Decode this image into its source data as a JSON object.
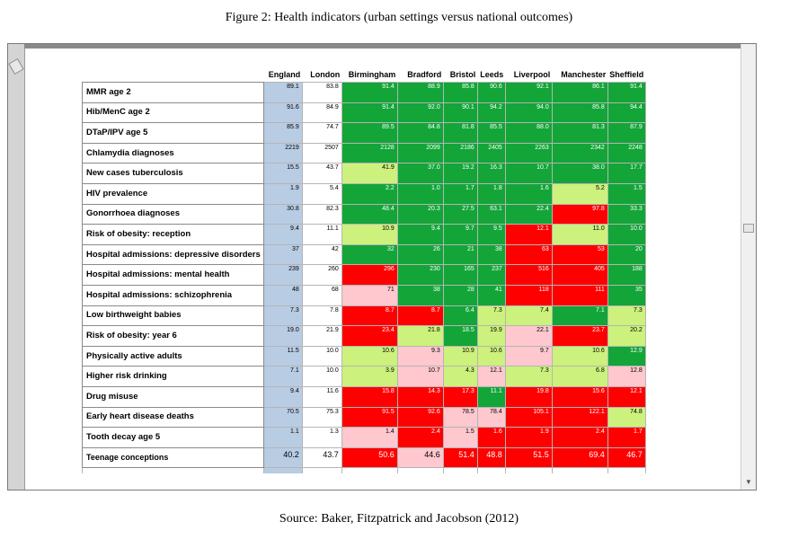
{
  "figure_title": "Figure 2: Health indicators (urban settings versus national outcomes)",
  "source": "Source: Baker, Fitzpatrick and Jacobson (2012)",
  "columns": [
    "England",
    "London",
    "Birmingham",
    "Bradford",
    "Bristol",
    "Leeds",
    "Liverpool",
    "Manchester",
    "Sheffield"
  ],
  "legend_colors": {
    "england": "#b8cce4",
    "better": "#13a538",
    "similar": "#ccf17c",
    "worse": "#ff0000",
    "slightly_worse": "#ffc7ce"
  },
  "rows": [
    {
      "label": "MMR age 2",
      "england": "89.1",
      "london": "83.8",
      "cities": [
        {
          "v": "91.4",
          "c": "g"
        },
        {
          "v": "88.9",
          "c": "g"
        },
        {
          "v": "85.8",
          "c": "g"
        },
        {
          "v": "90.6",
          "c": "g"
        },
        {
          "v": "92.1",
          "c": "g"
        },
        {
          "v": "86.1",
          "c": "g"
        },
        {
          "v": "91.4",
          "c": "g"
        }
      ]
    },
    {
      "label": "Hib/MenC age 2",
      "england": "91.6",
      "london": "84.9",
      "cities": [
        {
          "v": "91.4",
          "c": "g"
        },
        {
          "v": "92.0",
          "c": "g"
        },
        {
          "v": "90.1",
          "c": "g"
        },
        {
          "v": "94.2",
          "c": "g"
        },
        {
          "v": "94.0",
          "c": "g"
        },
        {
          "v": "85.8",
          "c": "g"
        },
        {
          "v": "94.4",
          "c": "g"
        }
      ]
    },
    {
      "label": "DTaP/IPV age 5",
      "england": "85.9",
      "london": "74.7",
      "cities": [
        {
          "v": "89.5",
          "c": "g"
        },
        {
          "v": "84.8",
          "c": "g"
        },
        {
          "v": "81.8",
          "c": "g"
        },
        {
          "v": "85.5",
          "c": "g"
        },
        {
          "v": "88.0",
          "c": "g"
        },
        {
          "v": "81.3",
          "c": "g"
        },
        {
          "v": "87.9",
          "c": "g"
        }
      ]
    },
    {
      "label": "Chlamydia diagnoses",
      "england": "2219",
      "london": "2507",
      "cities": [
        {
          "v": "2128",
          "c": "g"
        },
        {
          "v": "2099",
          "c": "g"
        },
        {
          "v": "2186",
          "c": "g"
        },
        {
          "v": "2405",
          "c": "g"
        },
        {
          "v": "2263",
          "c": "g"
        },
        {
          "v": "2342",
          "c": "g"
        },
        {
          "v": "2248",
          "c": "g"
        }
      ]
    },
    {
      "label": "New cases tuberculosis",
      "england": "15.5",
      "london": "43.7",
      "cities": [
        {
          "v": "41.9",
          "c": "y"
        },
        {
          "v": "37.0",
          "c": "g"
        },
        {
          "v": "19.2",
          "c": "g"
        },
        {
          "v": "16.3",
          "c": "g"
        },
        {
          "v": "10.7",
          "c": "g"
        },
        {
          "v": "38.0",
          "c": "g"
        },
        {
          "v": "17.7",
          "c": "g"
        }
      ]
    },
    {
      "label": "HIV prevalence",
      "england": "1.9",
      "london": "5.4",
      "cities": [
        {
          "v": "2.2",
          "c": "g"
        },
        {
          "v": "1.0",
          "c": "g"
        },
        {
          "v": "1.7",
          "c": "g"
        },
        {
          "v": "1.8",
          "c": "g"
        },
        {
          "v": "1.6",
          "c": "g"
        },
        {
          "v": "5.2",
          "c": "y"
        },
        {
          "v": "1.5",
          "c": "g"
        }
      ]
    },
    {
      "label": "Gonorrhoea diagnoses",
      "england": "30.8",
      "london": "82.3",
      "cities": [
        {
          "v": "48.4",
          "c": "g"
        },
        {
          "v": "20.3",
          "c": "g"
        },
        {
          "v": "27.5",
          "c": "g"
        },
        {
          "v": "63.1",
          "c": "g"
        },
        {
          "v": "22.4",
          "c": "g"
        },
        {
          "v": "97.8",
          "c": "r"
        },
        {
          "v": "33.3",
          "c": "g"
        }
      ]
    },
    {
      "label": "Risk of obesity: reception",
      "england": "9.4",
      "london": "11.1",
      "cities": [
        {
          "v": "10.9",
          "c": "y"
        },
        {
          "v": "9.4",
          "c": "g"
        },
        {
          "v": "9.7",
          "c": "g"
        },
        {
          "v": "9.5",
          "c": "g"
        },
        {
          "v": "12.1",
          "c": "r"
        },
        {
          "v": "11.0",
          "c": "y"
        },
        {
          "v": "10.0",
          "c": "g"
        }
      ]
    },
    {
      "label": "Hospital admissions: depressive disorders",
      "england": "37",
      "london": "42",
      "cities": [
        {
          "v": "32",
          "c": "g"
        },
        {
          "v": "26",
          "c": "g"
        },
        {
          "v": "21",
          "c": "g"
        },
        {
          "v": "38",
          "c": "g"
        },
        {
          "v": "63",
          "c": "r"
        },
        {
          "v": "53",
          "c": "r"
        },
        {
          "v": "20",
          "c": "g"
        }
      ]
    },
    {
      "label": "Hospital admissions: mental health",
      "england": "239",
      "london": "260",
      "cities": [
        {
          "v": "296",
          "c": "r"
        },
        {
          "v": "230",
          "c": "g"
        },
        {
          "v": "165",
          "c": "g"
        },
        {
          "v": "237",
          "c": "g"
        },
        {
          "v": "516",
          "c": "r"
        },
        {
          "v": "405",
          "c": "r"
        },
        {
          "v": "188",
          "c": "g"
        }
      ]
    },
    {
      "label": "Hospital admissions: schizophrenia",
      "england": "48",
      "london": "68",
      "cities": [
        {
          "v": "71",
          "c": "p"
        },
        {
          "v": "38",
          "c": "g"
        },
        {
          "v": "28",
          "c": "g"
        },
        {
          "v": "41",
          "c": "g"
        },
        {
          "v": "118",
          "c": "r"
        },
        {
          "v": "111",
          "c": "r"
        },
        {
          "v": "35",
          "c": "g"
        }
      ]
    },
    {
      "label": "Low birthweight babies",
      "england": "7.3",
      "london": "7.8",
      "cities": [
        {
          "v": "8.7",
          "c": "r"
        },
        {
          "v": "8.7",
          "c": "r"
        },
        {
          "v": "6.4",
          "c": "g"
        },
        {
          "v": "7.3",
          "c": "y"
        },
        {
          "v": "7.4",
          "c": "y"
        },
        {
          "v": "7.1",
          "c": "g"
        },
        {
          "v": "7.3",
          "c": "y"
        }
      ]
    },
    {
      "label": "Risk of obesity:  year 6",
      "england": "19.0",
      "london": "21.9",
      "cities": [
        {
          "v": "23.4",
          "c": "r"
        },
        {
          "v": "21.8",
          "c": "y"
        },
        {
          "v": "18.5",
          "c": "g"
        },
        {
          "v": "19.9",
          "c": "y"
        },
        {
          "v": "22.1",
          "c": "p"
        },
        {
          "v": "23.7",
          "c": "r"
        },
        {
          "v": "20.2",
          "c": "y"
        }
      ]
    },
    {
      "label": "Physically active adults",
      "england": "11.5",
      "london": "10.0",
      "cities": [
        {
          "v": "10.6",
          "c": "y"
        },
        {
          "v": "9.3",
          "c": "p"
        },
        {
          "v": "10.9",
          "c": "y"
        },
        {
          "v": "10.6",
          "c": "y"
        },
        {
          "v": "9.7",
          "c": "p"
        },
        {
          "v": "10.6",
          "c": "y"
        },
        {
          "v": "12.9",
          "c": "g"
        }
      ]
    },
    {
      "label": "Higher risk drinking",
      "england": "7.1",
      "london": "10.0",
      "cities": [
        {
          "v": "3.9",
          "c": "y"
        },
        {
          "v": "10.7",
          "c": "p"
        },
        {
          "v": "4.3",
          "c": "y"
        },
        {
          "v": "12.1",
          "c": "p"
        },
        {
          "v": "7.3",
          "c": "y"
        },
        {
          "v": "6.8",
          "c": "y"
        },
        {
          "v": "12.8",
          "c": "p"
        }
      ]
    },
    {
      "label": "Drug misuse",
      "england": "9.4",
      "london": "11.6",
      "cities": [
        {
          "v": "15.8",
          "c": "r"
        },
        {
          "v": "14.3",
          "c": "r"
        },
        {
          "v": "17.3",
          "c": "r"
        },
        {
          "v": "11.1",
          "c": "g"
        },
        {
          "v": "19.8",
          "c": "r"
        },
        {
          "v": "15.6",
          "c": "r"
        },
        {
          "v": "12.1",
          "c": "r"
        }
      ]
    },
    {
      "label": "Early heart disease deaths",
      "england": "70.5",
      "london": "75.3",
      "cities": [
        {
          "v": "91.5",
          "c": "r"
        },
        {
          "v": "92.6",
          "c": "r"
        },
        {
          "v": "78.5",
          "c": "p"
        },
        {
          "v": "78.4",
          "c": "p"
        },
        {
          "v": "105.1",
          "c": "r"
        },
        {
          "v": "122.1",
          "c": "r"
        },
        {
          "v": "74.8",
          "c": "y"
        }
      ]
    },
    {
      "label": "Tooth decay age 5",
      "england": "1.1",
      "london": "1.3",
      "cities": [
        {
          "v": "1.4",
          "c": "p"
        },
        {
          "v": "2.4",
          "c": "r"
        },
        {
          "v": "1.5",
          "c": "p"
        },
        {
          "v": "1.6",
          "c": "r"
        },
        {
          "v": "1.9",
          "c": "r"
        },
        {
          "v": "2.4",
          "c": "r"
        },
        {
          "v": "1.7",
          "c": "r"
        }
      ]
    },
    {
      "label": "Teenage conceptions",
      "england": "40.2",
      "london": "43.7",
      "cities": [
        {
          "v": "50.6",
          "c": "r"
        },
        {
          "v": "44.6",
          "c": "p"
        },
        {
          "v": "51.4",
          "c": "r"
        },
        {
          "v": "48.8",
          "c": "r"
        },
        {
          "v": "51.5",
          "c": "r"
        },
        {
          "v": "69.4",
          "c": "r"
        },
        {
          "v": "46.7",
          "c": "r"
        }
      ]
    }
  ]
}
